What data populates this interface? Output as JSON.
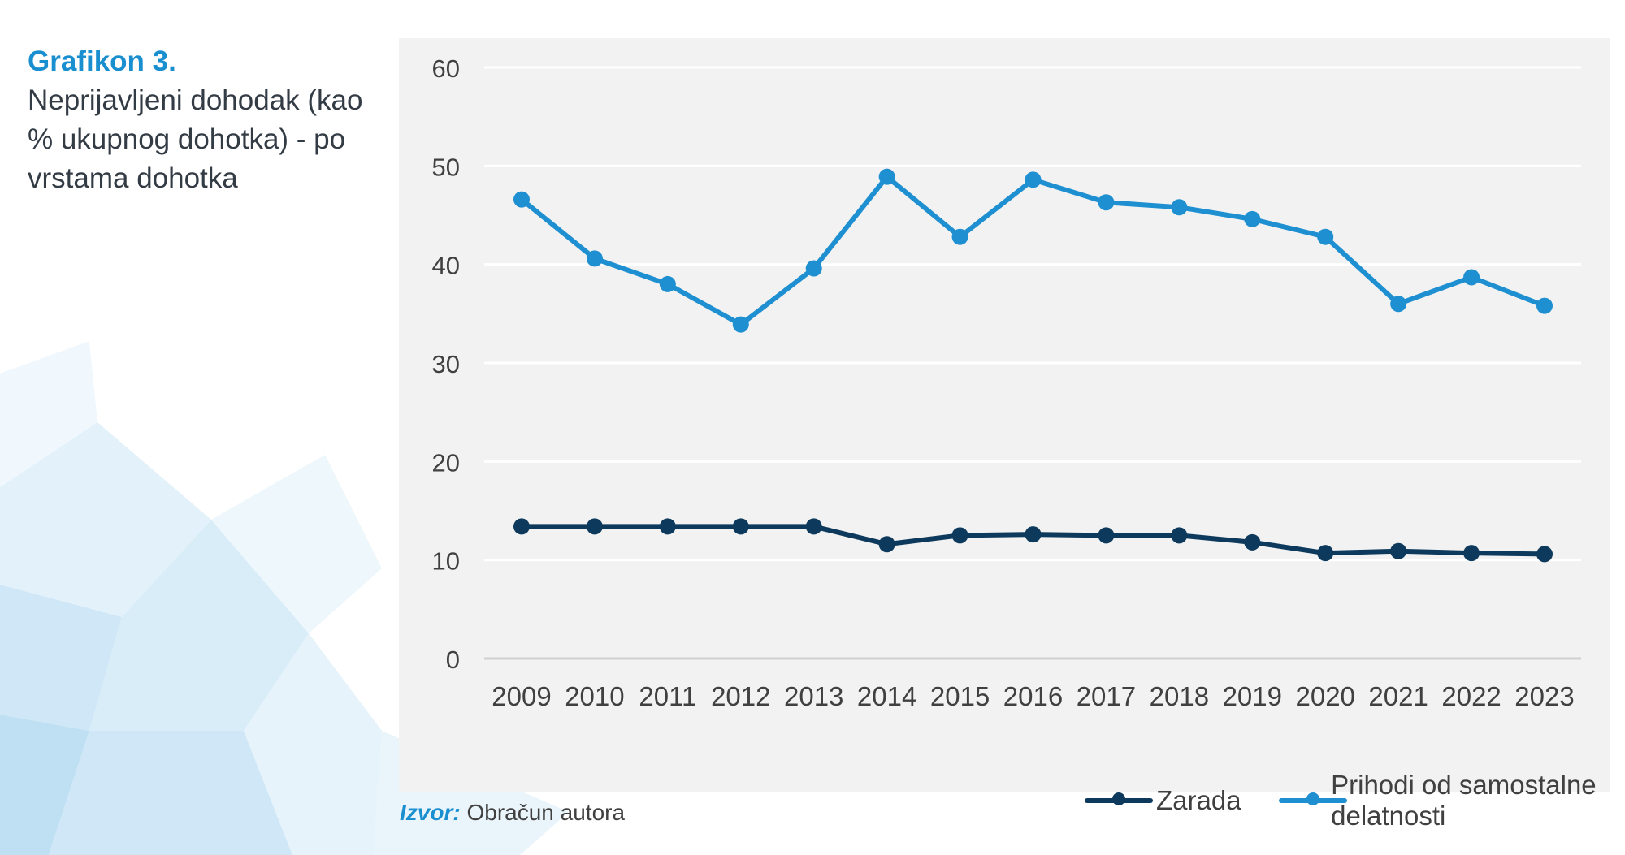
{
  "caption": {
    "label": "Grafikon 3.",
    "text": "Neprijavljeni dohodak (kao % ukupnog dohotka) - po vrstama dohotka"
  },
  "source": {
    "label": "Izvor:",
    "text": "Obračun autora"
  },
  "colors": {
    "series_dark": "#0d3a5c",
    "series_light": "#1e8fd0",
    "grid": "#ffffff",
    "axis_text": "#404040"
  },
  "chart_data": {
    "type": "line",
    "title": "",
    "xlabel": "",
    "ylabel": "",
    "ylim": [
      0,
      60
    ],
    "yticks": [
      0,
      10,
      20,
      30,
      40,
      50,
      60
    ],
    "grid": true,
    "legend_position": "bottom",
    "x": [
      "2009",
      "2010",
      "2011",
      "2012",
      "2013",
      "2014",
      "2015",
      "2016",
      "2017",
      "2018",
      "2019",
      "2020",
      "2021",
      "2022",
      "2023"
    ],
    "series": [
      {
        "name": "Zarada",
        "color": "#0d3a5c",
        "values": [
          13.4,
          13.4,
          13.4,
          13.4,
          13.4,
          11.6,
          12.5,
          12.6,
          12.5,
          12.5,
          11.8,
          10.7,
          10.9,
          10.7,
          10.6
        ]
      },
      {
        "name": "Prihodi od samostalne delatnosti",
        "color": "#1e8fd0",
        "values": [
          46.6,
          40.6,
          38.0,
          33.9,
          39.6,
          48.9,
          42.8,
          48.6,
          46.3,
          45.8,
          44.6,
          42.8,
          36.0,
          38.7,
          35.8
        ]
      }
    ]
  }
}
